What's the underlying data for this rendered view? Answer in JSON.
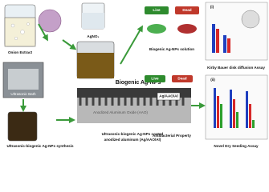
{
  "synthesis": {
    "onion_extract": "Onion Extract",
    "agno3": "AgNO₃",
    "ultrasonic_bath": "Ultrasonic Bath",
    "synthesis_caption": "Ultrasonic-biogenic Ag-NPs synthesis"
  },
  "coating": {
    "nps_label": "Biogenic Ag-NPs",
    "aao_label": "Anodized Aluminum Oxide (AAO)",
    "caption_line1": "Ultrasonic-biogenic Ag-NPs coated",
    "caption_line2": "anodized aluminum (Ag/AAO/Al)"
  },
  "antibacterial": {
    "live_top": "Live",
    "dead_top": "Dead",
    "solution_caption": "Biogenic Ag-NPs solution",
    "live_bottom": "Live",
    "dead_bottom": "Dead",
    "sample_label": "Ag/AAO/Al",
    "property_caption": "Antibacterial Property"
  },
  "assays": {
    "panel_i": "(i)",
    "kirby_caption": "Kirby Bauer disk diffusion Assay",
    "panel_ii": "(ii)",
    "seeding_caption": "Novel Dry Seeding Assay"
  }
}
